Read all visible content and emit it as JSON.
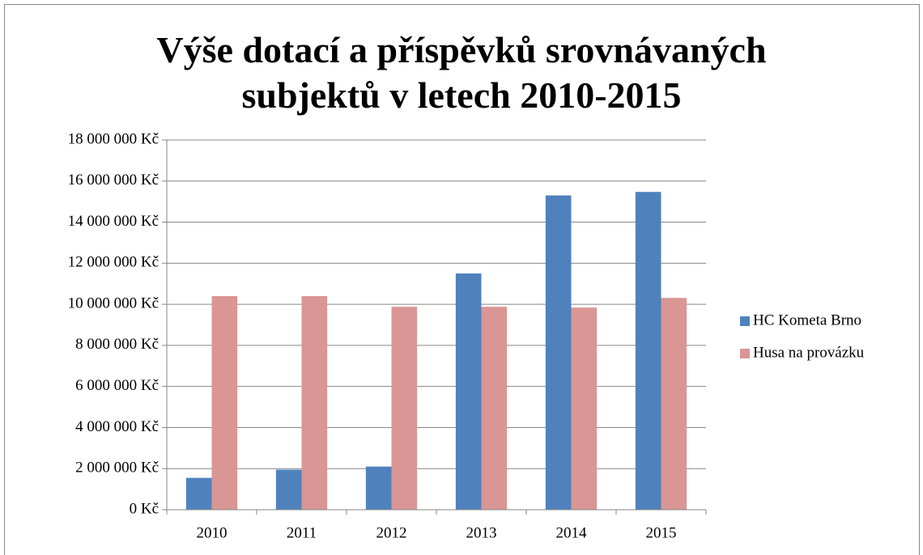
{
  "chart_data": {
    "type": "bar",
    "title": "Výše dotací a příspěvků srovnávaných subjektů v letech 2010-2015",
    "categories": [
      "2010",
      "2011",
      "2012",
      "2013",
      "2014",
      "2015"
    ],
    "series": [
      {
        "name": "HC Kometa Brno",
        "color": "#4f81bd",
        "values": [
          1550000,
          1950000,
          2100000,
          11500000,
          15300000,
          15470000
        ]
      },
      {
        "name": "Husa na provázku",
        "color": "#d99694",
        "values": [
          10400000,
          10400000,
          9880000,
          9880000,
          9840000,
          10310000
        ]
      }
    ],
    "ylim": [
      0,
      18000000
    ],
    "yticks": [
      {
        "value": 0,
        "label": "0 Kč"
      },
      {
        "value": 2000000,
        "label": "2 000 000 Kč"
      },
      {
        "value": 4000000,
        "label": "4 000 000 Kč"
      },
      {
        "value": 6000000,
        "label": "6 000 000 Kč"
      },
      {
        "value": 8000000,
        "label": "8 000 000 Kč"
      },
      {
        "value": 10000000,
        "label": "10 000 000 Kč"
      },
      {
        "value": 12000000,
        "label": "12 000 000 Kč"
      },
      {
        "value": 14000000,
        "label": "14 000 000 Kč"
      },
      {
        "value": 16000000,
        "label": "16 000 000 Kč"
      },
      {
        "value": 18000000,
        "label": "18 000 000 Kč"
      }
    ],
    "grid": true,
    "legend": "right"
  }
}
